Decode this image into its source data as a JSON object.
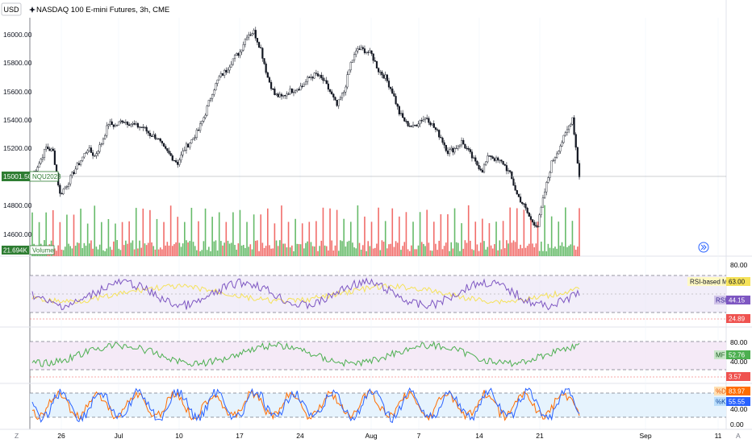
{
  "header": {
    "currency": "USD",
    "title": "NASDAQ 100 E-mini Futures, 3h, CME",
    "icon": "sparkle-icon"
  },
  "price_axis": {
    "ticks": [
      "16000.00",
      "15800.00",
      "15600.00",
      "15400.00",
      "15200.00",
      "14800.00",
      "14600.00"
    ],
    "last_price": "15001.50",
    "symbol": "NQU2023",
    "last_volume": "21.694K",
    "volume_label": "Volume"
  },
  "rsi": {
    "ticks": [
      "80.00",
      "20.00"
    ],
    "ma_label": "RSI-based MA",
    "ma_value": "63.00",
    "label": "RSI",
    "value": "44.15",
    "low_value": "24.89"
  },
  "mfi": {
    "ticks": [
      "80.00",
      "40.00"
    ],
    "label": "MF",
    "value": "52.76",
    "low_value": "3.57"
  },
  "stoch": {
    "ticks": [
      "80.00",
      "40.00",
      "0.00"
    ],
    "d_label": "%D",
    "d_value": "83.97",
    "k_label": "%K",
    "k_value": "55.55"
  },
  "time_axis": {
    "labels": [
      "26",
      "Jul",
      "10",
      "17",
      "24",
      "Aug",
      "7",
      "14",
      "21",
      "Sep",
      "11"
    ],
    "zoom_icon": "Z",
    "auto_label": "A"
  },
  "colors": {
    "up": "#26a69a",
    "down": "#ef5350",
    "vol_up": "#4caf50",
    "rsi_line": "#7e57c2",
    "rsi_ma": "#f5e25a",
    "mfi_line": "#4caf50",
    "stoch_k": "#2962ff",
    "stoch_d": "#ff6d00"
  },
  "chart_data": {
    "type": "candlestick",
    "title": "NASDAQ 100 E-mini Futures, 3h, CME",
    "x_start": "2023-06-22",
    "x_end": "2023-08-25",
    "price_series_close": [
      15020,
      15100,
      15210,
      15180,
      14880,
      14950,
      15040,
      15120,
      15200,
      15150,
      15240,
      15380,
      15360,
      15400,
      15380,
      15360,
      15350,
      15300,
      15280,
      15200,
      15150,
      15100,
      15200,
      15260,
      15330,
      15450,
      15600,
      15700,
      15750,
      15830,
      15880,
      16000,
      16020,
      15900,
      15700,
      15580,
      15560,
      15600,
      15620,
      15640,
      15700,
      15720,
      15680,
      15600,
      15500,
      15600,
      15800,
      15900,
      15890,
      15860,
      15750,
      15700,
      15600,
      15450,
      15380,
      15350,
      15400,
      15420,
      15350,
      15280,
      15180,
      15200,
      15250,
      15180,
      15100,
      15050,
      15160,
      15120,
      15100,
      15020,
      14880,
      14800,
      14700,
      14660,
      14900,
      15100,
      15200,
      15300,
      15420,
      15001.5
    ],
    "volume_last": "21.694K",
    "indicators": {
      "rsi_value": 44.15,
      "rsi_ma": 63.0,
      "mfi_value": 52.76,
      "stoch_d": 83.97,
      "stoch_k": 55.55
    }
  }
}
